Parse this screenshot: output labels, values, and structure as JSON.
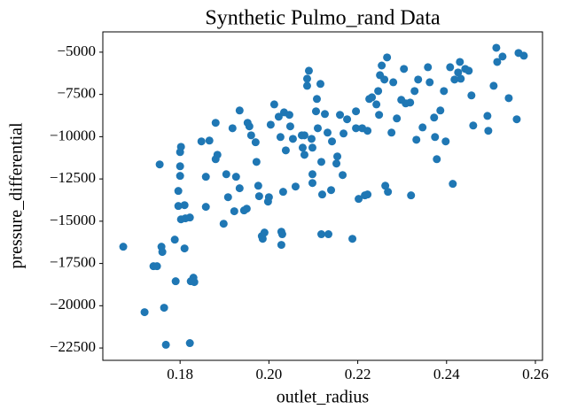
{
  "chart_data": {
    "type": "scatter",
    "title": "Synthetic Pulmo_rand Data",
    "xlabel": "outlet_radius",
    "ylabel": "pressure_differential",
    "color": "#1f77b4",
    "xlim": [
      0.1626,
      0.2616
    ],
    "ylim": [
      -23230,
      -3800
    ],
    "xticks": [
      0.18,
      {
        "value": 0.2,
        "label": "0.20"
      },
      0.22,
      0.24,
      0.26
    ],
    "yticks": [
      {
        "value": -5000,
        "label": "−5000"
      },
      {
        "value": -7500,
        "label": "−7500"
      },
      {
        "value": -10000,
        "label": "−10000"
      },
      {
        "value": -12500,
        "label": "−12500"
      },
      {
        "value": -15000,
        "label": "−15000"
      },
      {
        "value": -17500,
        "label": "−17500"
      },
      {
        "value": -20000,
        "label": "−20000"
      },
      {
        "value": -22500,
        "label": "−22500"
      }
    ],
    "grid": false,
    "x": [
      0.1672,
      0.172,
      0.174,
      0.1748,
      0.1754,
      0.1758,
      0.176,
      0.1764,
      0.1768,
      0.1788,
      0.179,
      0.1796,
      0.1796,
      0.18,
      0.18,
      0.18,
      0.1802,
      0.1802,
      0.181,
      0.181,
      0.1812,
      0.1822,
      0.1822,
      0.183,
      0.1832,
      0.1824,
      0.1848,
      0.1866,
      0.1858,
      0.1858,
      0.188,
      0.1884,
      0.188,
      0.1898,
      0.1908,
      0.1904,
      0.1918,
      0.1922,
      0.1926,
      0.1934,
      0.1934,
      0.1944,
      0.195,
      0.1952,
      0.1956,
      0.196,
      0.1972,
      0.1976,
      0.1978,
      0.197,
      0.1984,
      0.1986,
      0.199,
      0.2,
      0.1998,
      0.2004,
      0.2012,
      0.2022,
      0.2026,
      0.2028,
      0.2028,
      0.203,
      0.2032,
      0.2034,
      0.2038,
      0.2046,
      0.2048,
      0.2054,
      0.206,
      0.2074,
      0.208,
      0.2076,
      0.208,
      0.2086,
      0.2086,
      0.209,
      0.2096,
      0.2098,
      0.2098,
      0.2098,
      0.2106,
      0.2108,
      0.211,
      0.2116,
      0.2118,
      0.212,
      0.2118,
      0.2134,
      0.2126,
      0.2132,
      0.214,
      0.2142,
      0.2152,
      0.2154,
      0.216,
      0.2166,
      0.2168,
      0.2176,
      0.2188,
      0.2196,
      0.2196,
      0.2202,
      0.221,
      0.2216,
      0.2222,
      0.2222,
      0.2226,
      0.2232,
      0.2242,
      0.2246,
      0.2248,
      0.225,
      0.2254,
      0.226,
      0.2262,
      0.2268,
      0.2266,
      0.2276,
      0.228,
      0.2288,
      0.2298,
      0.2304,
      0.2308,
      0.2318,
      0.232,
      0.2328,
      0.2332,
      0.2336,
      0.2346,
      0.2358,
      0.2362,
      0.2372,
      0.2374,
      0.2378,
      0.2386,
      0.2394,
      0.2398,
      0.2408,
      0.2414,
      0.2418,
      0.2426,
      0.243,
      0.2432,
      0.2442,
      0.245,
      0.2456,
      0.246,
      0.2492,
      0.2494,
      0.2506,
      0.2512,
      0.2514,
      0.2526,
      0.254,
      0.2562,
      0.2574,
      0.2558
    ],
    "values": [
      -16510,
      -20380,
      -17660,
      -17660,
      -11640,
      -16510,
      -16820,
      -20120,
      -22310,
      -16090,
      -18550,
      -14100,
      -13210,
      -12320,
      -11750,
      -10910,
      -10600,
      -14890,
      -16610,
      -14050,
      -14830,
      -14780,
      -22210,
      -18340,
      -18600,
      -18550,
      -10280,
      -10230,
      -14150,
      -12370,
      -11330,
      -11070,
      -9180,
      -15150,
      -13580,
      -12220,
      -9500,
      -14410,
      -12370,
      -13050,
      -8450,
      -14360,
      -14260,
      -9180,
      -9390,
      -9920,
      -11490,
      -12900,
      -13520,
      -10330,
      -15880,
      -16040,
      -15670,
      -13580,
      -13840,
      -9290,
      -8090,
      -8820,
      -10020,
      -16400,
      -15620,
      -15770,
      -13260,
      -8560,
      -10810,
      -8710,
      -9390,
      -10130,
      -12950,
      -9920,
      -9920,
      -10650,
      -11070,
      -6990,
      -6570,
      -6100,
      -10130,
      -12220,
      -10650,
      -12740,
      -8500,
      -7770,
      -9500,
      -6880,
      -11490,
      -13420,
      -15770,
      -15770,
      -8660,
      -9760,
      -13160,
      -10280,
      -11590,
      -11170,
      -8710,
      -12270,
      -9810,
      -8970,
      -16040,
      -9500,
      -8500,
      -13680,
      -9500,
      -13470,
      -13420,
      -9650,
      -7770,
      -7670,
      -8090,
      -7300,
      -8710,
      -6360,
      -5790,
      -6620,
      -12900,
      -13260,
      -5310,
      -9760,
      -6780,
      -8920,
      -7820,
      -5990,
      -8030,
      -7980,
      -13470,
      -7300,
      -10180,
      -6620,
      -9450,
      -5890,
      -6780,
      -8870,
      -10020,
      -11330,
      -8450,
      -7300,
      -10280,
      -5890,
      -12790,
      -6620,
      -6200,
      -5580,
      -6570,
      -5990,
      -6100,
      -7560,
      -9340,
      -8770,
      -9650,
      -6990,
      -4740,
      -5580,
      -5260,
      -7720,
      -5050,
      -5210,
      -8970
    ]
  }
}
